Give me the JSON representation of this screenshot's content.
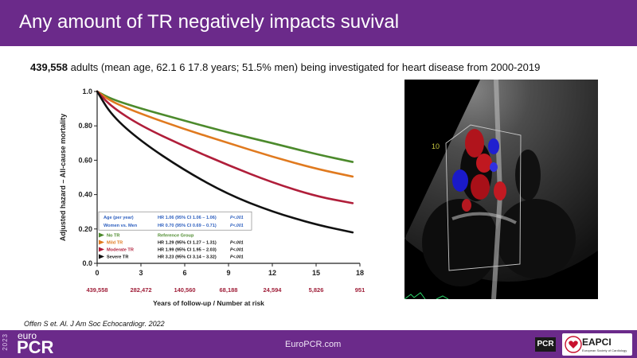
{
  "slide": {
    "title": "Any amount of TR negatively impacts suvival",
    "subtitle_bold": "439,558",
    "subtitle_rest": " adults (mean age, 62.1 6 17.8 years; 51.5% men) being investigated for heart disease from 2000-2019",
    "citation": "Offen S et. Al. J Am Soc Echocardiogr. 2022"
  },
  "footer": {
    "year": "2023",
    "logo_euro": "euro",
    "logo_pcr": "PCR",
    "url": "EuroPCR.com",
    "pcr_badge": "PCR",
    "eapci_label": "EAPCI",
    "eapci_sub": "European Society of Cardiology"
  },
  "echo": {
    "depth_label": "10"
  },
  "chart_data": {
    "type": "line",
    "ylabel": "Adjusted hazard – All-cause mortality",
    "xlabel": "Years of follow-up / Number at risk",
    "xlim": [
      0,
      18
    ],
    "ylim": [
      0,
      1.0
    ],
    "x_ticks": [
      0,
      3,
      6,
      9,
      12,
      15,
      18
    ],
    "y_ticks": [
      {
        "v": 0.0,
        "label": "0.0"
      },
      {
        "v": 0.2,
        "label": "0.20"
      },
      {
        "v": 0.4,
        "label": "0.40"
      },
      {
        "v": 0.6,
        "label": "0.60"
      },
      {
        "v": 0.8,
        "label": "0.80"
      },
      {
        "v": 1.0,
        "label": "1.0"
      }
    ],
    "number_at_risk": [
      "439,558",
      "282,472",
      "140,560",
      "68,188",
      "24,594",
      "5,826",
      "951"
    ],
    "series": [
      {
        "name": "No TR",
        "color": "#4c8a2c",
        "x": [
          0,
          1,
          3,
          6,
          9,
          12,
          15,
          17.5
        ],
        "y": [
          1.0,
          0.955,
          0.9,
          0.83,
          0.76,
          0.7,
          0.635,
          0.59
        ]
      },
      {
        "name": "Mild TR",
        "color": "#e07a1f",
        "x": [
          0,
          1,
          3,
          6,
          9,
          12,
          15,
          17.5
        ],
        "y": [
          1.0,
          0.94,
          0.87,
          0.78,
          0.7,
          0.62,
          0.55,
          0.505
        ]
      },
      {
        "name": "Moderate TR",
        "color": "#b01e3a",
        "x": [
          0,
          1,
          3,
          6,
          9,
          12,
          15,
          17.5
        ],
        "y": [
          1.0,
          0.91,
          0.8,
          0.68,
          0.57,
          0.47,
          0.39,
          0.35
        ]
      },
      {
        "name": "Severe TR",
        "color": "#111111",
        "x": [
          0,
          1,
          3,
          6,
          9,
          12,
          15,
          17.5
        ],
        "y": [
          1.0,
          0.86,
          0.71,
          0.54,
          0.4,
          0.3,
          0.225,
          0.18
        ]
      }
    ],
    "legend_box": {
      "rows": [
        {
          "label": "Age (per year)",
          "hr": "HR 1.06 (95% CI 1.06 – 1.06)",
          "p": "P<.001",
          "color": "#2d5fbf"
        },
        {
          "label": "Women vs. Men",
          "hr": "HR 0.70 (95% CI 0.69 – 0.71)",
          "p": "P<.001",
          "color": "#2d5fbf"
        }
      ]
    },
    "legend": [
      {
        "label": "No TR",
        "hr": "Reference Group",
        "p": "",
        "color": "#4c8a2c",
        "hr_color": "#4c8a2c"
      },
      {
        "label": "Mild TR",
        "hr": "HR 1.29 (95% CI 1.27 – 1.31)",
        "p": "P<.001",
        "color": "#e07a1f",
        "hr_color": "#111111"
      },
      {
        "label": "Moderate TR",
        "hr": "HR 1.99 (95% CI 1.95 – 2.03)",
        "p": "P<.001",
        "color": "#b01e3a",
        "hr_color": "#111111"
      },
      {
        "label": "Severe TR",
        "hr": "HR 3.23 (95% CI 3.14 – 3.32)",
        "p": "P<.001",
        "color": "#111111",
        "hr_color": "#111111"
      }
    ]
  }
}
